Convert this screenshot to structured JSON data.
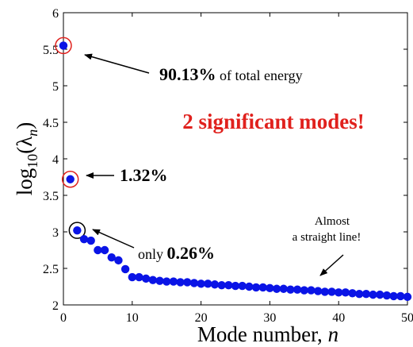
{
  "chart_data": {
    "type": "scatter",
    "xlabel_prefix": "Mode number, ",
    "xlabel_var": "n",
    "ylabel_prefix": "log",
    "ylabel_sub": "10",
    "ylabel_lambda": "λ",
    "ylabel_n": "n",
    "xlim": [
      0,
      50
    ],
    "ylim": [
      2,
      6
    ],
    "xticks": [
      0,
      10,
      20,
      30,
      40,
      50
    ],
    "xtick_labels": [
      "0",
      "10",
      "20",
      "30",
      "40",
      "50"
    ],
    "yticks": [
      2,
      2.5,
      3,
      3.5,
      4,
      4.5,
      5,
      5.5,
      6
    ],
    "ytick_labels": [
      "2",
      "2.5",
      "3",
      "3.5",
      "4",
      "4.5",
      "5",
      "5.5",
      "6"
    ],
    "grid": false,
    "point_color": "#0a14e6",
    "x": [
      0,
      1,
      2,
      3,
      4,
      5,
      6,
      7,
      8,
      9,
      10,
      11,
      12,
      13,
      14,
      15,
      16,
      17,
      18,
      19,
      20,
      21,
      22,
      23,
      24,
      25,
      26,
      27,
      28,
      29,
      30,
      31,
      32,
      33,
      34,
      35,
      36,
      37,
      38,
      39,
      40,
      41,
      42,
      43,
      44,
      45,
      46,
      47,
      48,
      49,
      50
    ],
    "y": [
      5.55,
      3.72,
      3.02,
      2.9,
      2.88,
      2.75,
      2.75,
      2.65,
      2.61,
      2.49,
      2.38,
      2.38,
      2.36,
      2.34,
      2.33,
      2.32,
      2.32,
      2.31,
      2.31,
      2.3,
      2.29,
      2.29,
      2.28,
      2.27,
      2.27,
      2.26,
      2.26,
      2.25,
      2.24,
      2.24,
      2.23,
      2.22,
      2.22,
      2.21,
      2.21,
      2.2,
      2.2,
      2.19,
      2.18,
      2.18,
      2.17,
      2.17,
      2.16,
      2.15,
      2.15,
      2.14,
      2.14,
      2.13,
      2.12,
      2.12,
      2.11
    ],
    "highlights": [
      {
        "index": 0,
        "color": "#e0211d"
      },
      {
        "index": 1,
        "color": "#e0211d"
      },
      {
        "index": 2,
        "color": "#000000"
      }
    ],
    "annotations": {
      "a1_bold": "90.13%",
      "a1_rest": " of total energy",
      "a2_bold": "1.32%",
      "a3_pre": "only ",
      "a3_bold": "0.26%",
      "headline": "2 significant modes!",
      "headline_color": "#e0211d",
      "note_line1": "Almost",
      "note_line2": "a straight line!"
    }
  }
}
